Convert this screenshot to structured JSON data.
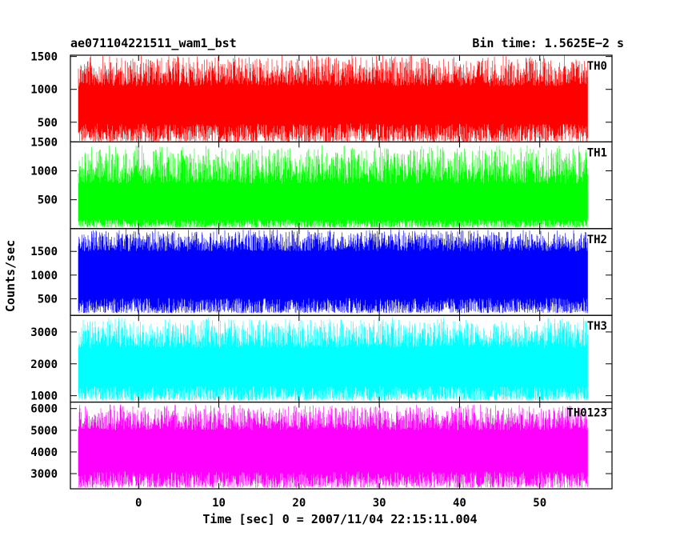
{
  "chart_data": {
    "type": "line",
    "title": "ae071104221511_wam1_bst",
    "bin_time_label": "Bin time: 1.5625E−2 s",
    "xlabel": "Time [sec] 0 = 2007/11/04 22:15:11.004",
    "ylabel": "Counts/sec",
    "xlim": [
      -8.5,
      59
    ],
    "x_ticks": [
      0,
      10,
      20,
      30,
      40,
      50
    ],
    "x_tick_labels": [
      "0",
      "10",
      "20",
      "30",
      "40",
      "50"
    ],
    "data_x_range": [
      -7.5,
      56
    ],
    "grid": false,
    "panels": [
      {
        "name": "TH0",
        "color": "#ff0000",
        "ylim": [
          200,
          1520
        ],
        "y_ticks": [
          500,
          1000,
          1500
        ],
        "y_tick_labels": [
          "500",
          "1000",
          "1500"
        ],
        "band": {
          "low_min": 200,
          "low_max": 480,
          "high_min": 1050,
          "high_max": 1520
        }
      },
      {
        "name": "TH1",
        "color": "#00ff00",
        "ylim": [
          0,
          1500
        ],
        "y_ticks": [
          500,
          1000,
          1500
        ],
        "y_tick_labels": [
          "500",
          "1000",
          "1500"
        ],
        "band": {
          "low_min": 20,
          "low_max": 160,
          "high_min": 780,
          "high_max": 1450
        }
      },
      {
        "name": "TH2",
        "color": "#0000ff",
        "ylim": [
          150,
          1980
        ],
        "y_ticks": [
          500,
          1000,
          1500
        ],
        "y_tick_labels": [
          "500",
          "1000",
          "1500"
        ],
        "band": {
          "low_min": 200,
          "low_max": 520,
          "high_min": 1500,
          "high_max": 1980
        }
      },
      {
        "name": "TH3",
        "color": "#00ffff",
        "ylim": [
          800,
          3520
        ],
        "y_ticks": [
          1000,
          2000,
          3000
        ],
        "y_tick_labels": [
          "1000",
          "2000",
          "3000"
        ],
        "band": {
          "low_min": 850,
          "low_max": 1300,
          "high_min": 2500,
          "high_max": 3450
        }
      },
      {
        "name": "TH0123",
        "color": "#ff00ff",
        "ylim": [
          2300,
          6300
        ],
        "y_ticks": [
          3000,
          4000,
          5000,
          6000
        ],
        "y_tick_labels": [
          "3000",
          "4000",
          "5000",
          "6000"
        ],
        "band": {
          "low_min": 2350,
          "low_max": 3100,
          "high_min": 5000,
          "high_max": 6200
        }
      }
    ]
  }
}
